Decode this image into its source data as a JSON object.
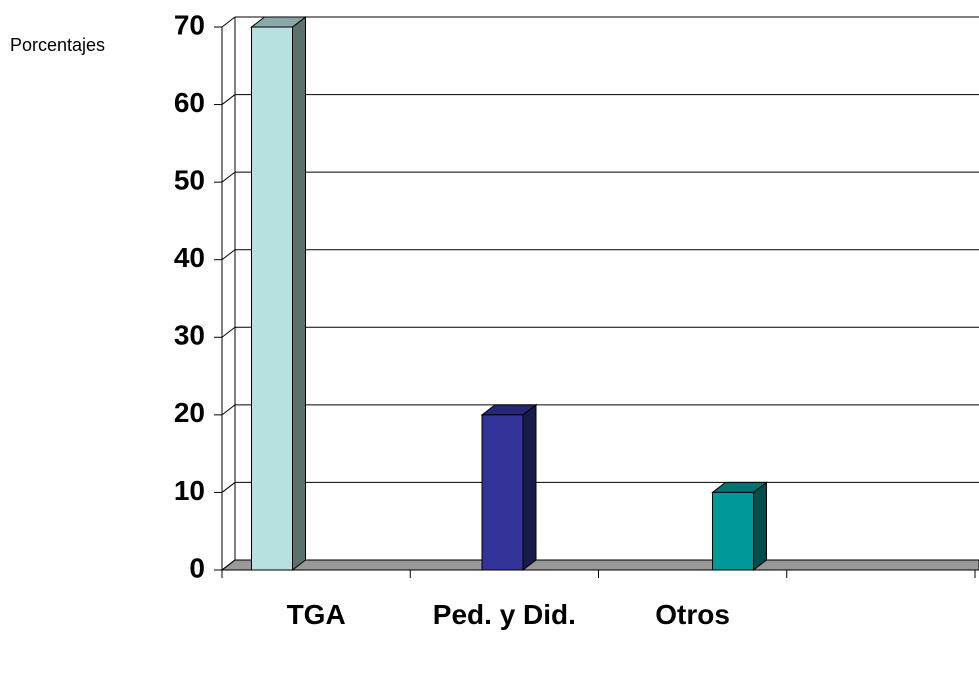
{
  "chart_data": {
    "type": "bar3d",
    "y_axis_label": "Porcentajes",
    "categories": [
      "TGA",
      "Ped. y Did.",
      "Otros",
      null
    ],
    "values": [
      70,
      20,
      10,
      null
    ],
    "colors": [
      "#b8e0e0",
      "#333399",
      "#009999"
    ],
    "ylim": [
      0,
      70
    ],
    "yticks": [
      0,
      10,
      20,
      30,
      40,
      50,
      60,
      70
    ],
    "grid": true
  }
}
